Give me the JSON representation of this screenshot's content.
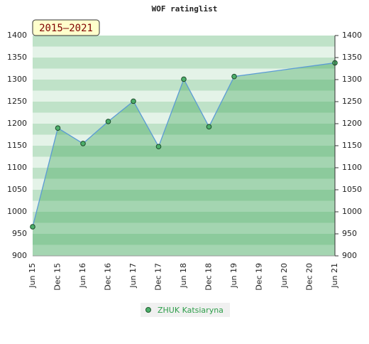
{
  "chart_data": {
    "type": "line",
    "title": "WOF ratinglist",
    "period": "2015–2021",
    "categories": [
      "Jun 15",
      "Dec 15",
      "Jun 16",
      "Dec 16",
      "Jun 17",
      "Dec 17",
      "Jun 18",
      "Dec 18",
      "Jun 19",
      "Dec 19",
      "Jun 20",
      "Dec 20",
      "Jun 21"
    ],
    "series": [
      {
        "name": "ZHUK Katsiaryna",
        "color": "#2e9e4a",
        "x": [
          "Jun 15",
          "Dec 15",
          "Jun 16",
          "Dec 16",
          "Jun 17",
          "Dec 17",
          "Jun 18",
          "Dec 18",
          "Jun 19",
          "Jun 21"
        ],
        "values": [
          966,
          1190,
          1155,
          1205,
          1251,
          1148,
          1301,
          1193,
          1307,
          1338
        ]
      }
    ],
    "ylim": [
      900,
      1400
    ],
    "yticks": [
      900,
      950,
      1000,
      1050,
      1100,
      1150,
      1200,
      1250,
      1300,
      1350,
      1400
    ]
  }
}
